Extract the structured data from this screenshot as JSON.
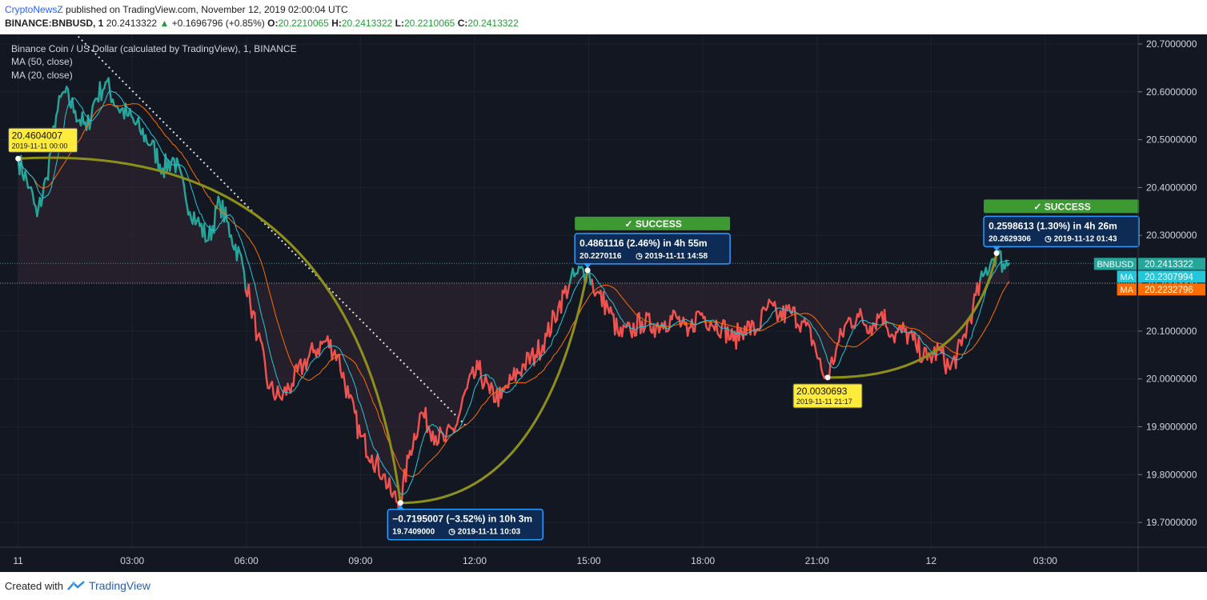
{
  "header": {
    "brand": "CryptoNewsZ",
    "published": "published on TradingView.com, November 12, 2019 02:00:04 UTC",
    "symbol": "BINANCE:BNBUSD, 1",
    "last": "20.2413322",
    "change": "+0.1696796 (+0.85%)",
    "o_label": "O:",
    "o": "20.2210065",
    "h_label": "H:",
    "h": "20.2413322",
    "l_label": "L:",
    "l": "20.2210065",
    "c_label": "C:",
    "c": "20.2413322"
  },
  "legend": {
    "title": "Binance Coin / US Dollar (calculated by TradingView), 1, BINANCE",
    "ma1": "MA (50, close)",
    "ma2": "MA (20, close)"
  },
  "footer": {
    "created": "Created with",
    "tradingview": "TradingView"
  },
  "colors": {
    "background": "#131722",
    "up": "#26a69a",
    "down": "#ef5350",
    "ma50": "#ff6d00",
    "ma20": "#26c6da",
    "arc": "#8d8f1a",
    "callout_blue": "#0d2b55",
    "success_green": "#3d9a33",
    "yellow_label": "#ffeb3b"
  },
  "chart_data": {
    "type": "line",
    "title": "Binance Coin / US Dollar (calculated by TradingView), 1, BINANCE",
    "ylim": [
      19.65,
      20.72
    ],
    "y_ticks": [
      "20.7000000",
      "20.6000000",
      "20.5000000",
      "20.4000000",
      "20.3000000",
      "20.2000000",
      "20.1000000",
      "20.0000000",
      "19.9000000",
      "19.8000000",
      "19.7000000"
    ],
    "y_tick_values": [
      20.7,
      20.6,
      20.5,
      20.4,
      20.3,
      20.2,
      20.1,
      20.0,
      19.9,
      19.8,
      19.7
    ],
    "x_ticks": [
      {
        "label": "11",
        "h": 0
      },
      {
        "label": "03:00",
        "h": 3
      },
      {
        "label": "06:00",
        "h": 6
      },
      {
        "label": "09:00",
        "h": 9
      },
      {
        "label": "12:00",
        "h": 12
      },
      {
        "label": "15:00",
        "h": 15
      },
      {
        "label": "18:00",
        "h": 18
      },
      {
        "label": "21:00",
        "h": 21
      },
      {
        "label": "12",
        "h": 24
      },
      {
        "label": "03:00",
        "h": 27
      }
    ],
    "xlim_hours": [
      -0.35,
      29.4
    ],
    "series": [
      {
        "name": "BNBUSD",
        "x_hours": [
          0,
          0.3,
          0.5,
          0.75,
          1,
          1.2,
          1.5,
          1.8,
          2,
          2.3,
          2.6,
          2.9,
          3.2,
          3.5,
          3.8,
          4.1,
          4.4,
          4.7,
          5,
          5.3,
          5.6,
          5.9,
          6.1,
          6.3,
          6.6,
          6.9,
          7.2,
          7.5,
          7.8,
          8.1,
          8.4,
          8.7,
          9,
          9.3,
          9.6,
          9.8,
          10.05,
          10.3,
          10.6,
          10.9,
          11.2,
          11.5,
          11.8,
          12.1,
          12.4,
          12.7,
          13,
          13.3,
          13.6,
          13.9,
          14.2,
          14.5,
          14.7,
          14.97,
          15.2,
          15.5,
          15.8,
          16.1,
          16.4,
          16.7,
          17,
          17.3,
          17.6,
          17.9,
          18.2,
          18.5,
          18.8,
          19.1,
          19.4,
          19.7,
          20,
          20.3,
          20.6,
          20.9,
          21.15,
          21.28,
          21.5,
          21.8,
          22.1,
          22.4,
          22.7,
          23,
          23.3,
          23.6,
          23.9,
          24.2,
          24.5,
          24.8,
          25.1,
          25.4,
          25.6,
          25.72,
          25.9,
          26.05
        ],
        "values": [
          20.46,
          20.4,
          20.34,
          20.42,
          20.55,
          20.6,
          20.56,
          20.52,
          20.58,
          20.62,
          20.57,
          20.55,
          20.52,
          20.49,
          20.44,
          20.46,
          20.38,
          20.33,
          20.29,
          20.37,
          20.3,
          20.24,
          20.16,
          20.09,
          19.98,
          19.96,
          19.99,
          20.03,
          20.06,
          20.08,
          20.05,
          19.96,
          19.88,
          19.84,
          19.8,
          19.76,
          19.74,
          19.85,
          19.93,
          19.89,
          19.87,
          19.9,
          19.98,
          20.02,
          19.97,
          19.96,
          20.0,
          20.03,
          20.05,
          20.09,
          20.15,
          20.2,
          20.22,
          20.227,
          20.18,
          20.15,
          20.09,
          20.1,
          20.12,
          20.11,
          20.12,
          20.13,
          20.09,
          20.14,
          20.12,
          20.11,
          20.08,
          20.11,
          20.1,
          20.15,
          20.13,
          20.14,
          20.12,
          20.08,
          20.01,
          20.003,
          20.06,
          20.12,
          20.13,
          20.11,
          20.14,
          20.09,
          20.1,
          20.07,
          20.04,
          20.06,
          20.02,
          20.07,
          20.15,
          20.22,
          20.25,
          20.263,
          20.24,
          20.2413
        ]
      },
      {
        "name": "MA (50, close)",
        "ref": "BNBUSD",
        "period_hours": 1.2,
        "last": "20.2232796"
      },
      {
        "name": "MA (20, close)",
        "ref": "BNBUSD",
        "period_hours": 0.45,
        "last": "20.2307994"
      }
    ],
    "annotations": [
      {
        "type": "price_label",
        "x_hours": 0,
        "y": 20.4604007,
        "value": "20.4604007",
        "date": "2019-11-11 00:00",
        "side": "above"
      },
      {
        "type": "price_label",
        "x_hours": 21.28,
        "y": 20.0030693,
        "value": "20.0030693",
        "date": "2019-11-11 21:17",
        "side": "below"
      },
      {
        "type": "callout",
        "x_hours": 10.05,
        "y": 19.7409,
        "text": "−0.7195007 (−3.52%) in 10h 3m",
        "price": "19.7409000",
        "date": "2019-11-11  10:03",
        "side": "below"
      },
      {
        "type": "callout",
        "x_hours": 14.97,
        "y": 20.2270116,
        "text": "0.4861116 (2.46%) in 4h 55m",
        "price": "20.2270116",
        "date": "2019-11-11  14:58",
        "success": "SUCCESS",
        "side": "above"
      },
      {
        "type": "callout",
        "x_hours": 25.72,
        "y": 20.2629306,
        "text": "0.2598613 (1.30%) in 4h 26m",
        "price": "20.2629306",
        "date": "2019-11-12  01:43",
        "success": "SUCCESS",
        "side": "above"
      }
    ],
    "trendline": {
      "from": [
        1.4,
        20.73
      ],
      "to": [
        11.8,
        19.9
      ],
      "style": "dotted"
    },
    "arcs": [
      {
        "from": [
          0,
          20.4604
        ],
        "ctrl": [
          8.8,
          20.5
        ],
        "to": [
          10.05,
          19.7409
        ]
      },
      {
        "from": [
          10.05,
          19.7409
        ],
        "ctrl": [
          13.8,
          19.74
        ],
        "to": [
          14.97,
          20.227
        ]
      },
      {
        "from": [
          21.28,
          20.0031
        ],
        "ctrl": [
          25.0,
          20.0
        ],
        "to": [
          25.72,
          20.2629
        ]
      }
    ],
    "right_labels": [
      {
        "label": "BNBUSD",
        "value": "20.2413322",
        "y": 20.2413322,
        "color": "#26a69a"
      },
      {
        "label": "MA",
        "value": "20.2307994",
        "y": 20.2307994,
        "color": "#26c6da"
      },
      {
        "label": "MA",
        "value": "20.2232796",
        "y": 20.2232796,
        "color": "#ff6d00"
      }
    ],
    "reference_levels": [
      {
        "y": 20.2413322,
        "color": "#26a69a"
      },
      {
        "y": 20.2,
        "color": "#9598a1"
      }
    ]
  }
}
